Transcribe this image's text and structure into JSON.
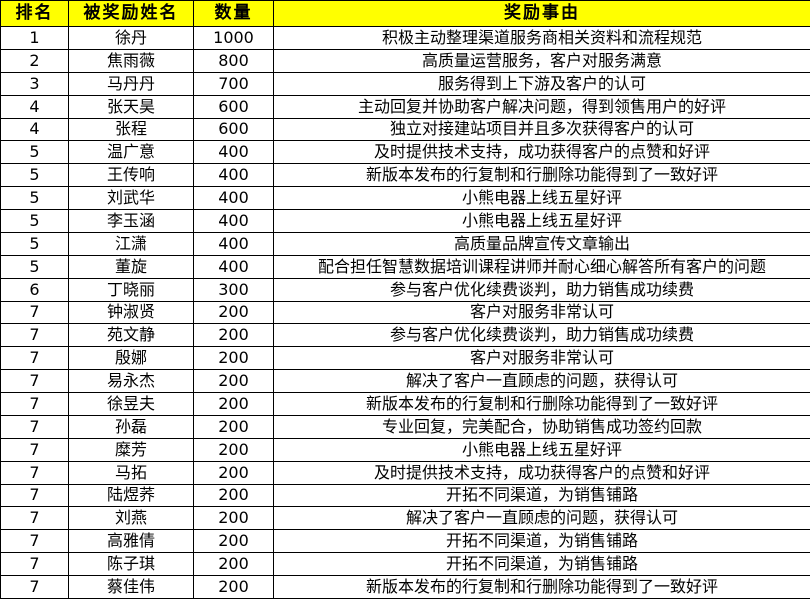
{
  "colors": {
    "header_bg": "#FFFF00",
    "border": "#000000",
    "text": "#000000",
    "background": "#FFFFFF"
  },
  "table": {
    "headers": [
      "排名",
      "被奖励姓名",
      "数量",
      "奖励事由"
    ],
    "rows": [
      {
        "rank": "1",
        "name": "徐丹",
        "qty": "1000",
        "reason": "积极主动整理渠道服务商相关资料和流程规范"
      },
      {
        "rank": "2",
        "name": "焦雨薇",
        "qty": "800",
        "reason": "高质量运营服务，客户对服务满意"
      },
      {
        "rank": "3",
        "name": "马丹丹",
        "qty": "700",
        "reason": "服务得到上下游及客户的认可"
      },
      {
        "rank": "4",
        "name": "张天昊",
        "qty": "600",
        "reason": "主动回复并协助客户解决问题，得到领售用户的好评"
      },
      {
        "rank": "4",
        "name": "张程",
        "qty": "600",
        "reason": "独立对接建站项目并且多次获得客户的认可"
      },
      {
        "rank": "5",
        "name": "温广意",
        "qty": "400",
        "reason": "及时提供技术支持，成功获得客户的点赞和好评"
      },
      {
        "rank": "5",
        "name": "王传响",
        "qty": "400",
        "reason": "新版本发布的行复制和行删除功能得到了一致好评"
      },
      {
        "rank": "5",
        "name": "刘武华",
        "qty": "400",
        "reason": "小熊电器上线五星好评"
      },
      {
        "rank": "5",
        "name": "李玉涵",
        "qty": "400",
        "reason": "小熊电器上线五星好评"
      },
      {
        "rank": "5",
        "name": "江潇",
        "qty": "400",
        "reason": "高质量品牌宣传文章输出"
      },
      {
        "rank": "5",
        "name": "董旋",
        "qty": "400",
        "reason": "配合担任智慧数据培训课程讲师并耐心细心解答所有客户的问题"
      },
      {
        "rank": "6",
        "name": "丁晓丽",
        "qty": "300",
        "reason": "参与客户优化续费谈判，助力销售成功续费"
      },
      {
        "rank": "7",
        "name": "钟淑贤",
        "qty": "200",
        "reason": "客户对服务非常认可"
      },
      {
        "rank": "7",
        "name": "苑文静",
        "qty": "200",
        "reason": "参与客户优化续费谈判，助力销售成功续费"
      },
      {
        "rank": "7",
        "name": "殷娜",
        "qty": "200",
        "reason": "客户对服务非常认可"
      },
      {
        "rank": "7",
        "name": "易永杰",
        "qty": "200",
        "reason": "解决了客户一直顾虑的问题，获得认可"
      },
      {
        "rank": "7",
        "name": "徐昱夫",
        "qty": "200",
        "reason": "新版本发布的行复制和行删除功能得到了一致好评"
      },
      {
        "rank": "7",
        "name": "孙磊",
        "qty": "200",
        "reason": "专业回复，完美配合，协助销售成功签约回款"
      },
      {
        "rank": "7",
        "name": "糜芳",
        "qty": "200",
        "reason": "小熊电器上线五星好评"
      },
      {
        "rank": "7",
        "name": "马拓",
        "qty": "200",
        "reason": "及时提供技术支持，成功获得客户的点赞和好评"
      },
      {
        "rank": "7",
        "name": "陆煜荞",
        "qty": "200",
        "reason": "开拓不同渠道，为销售铺路"
      },
      {
        "rank": "7",
        "name": "刘燕",
        "qty": "200",
        "reason": "解决了客户一直顾虑的问题，获得认可"
      },
      {
        "rank": "7",
        "name": "高雅倩",
        "qty": "200",
        "reason": "开拓不同渠道，为销售铺路"
      },
      {
        "rank": "7",
        "name": "陈子琪",
        "qty": "200",
        "reason": "开拓不同渠道，为销售铺路"
      },
      {
        "rank": "7",
        "name": "蔡佳伟",
        "qty": "200",
        "reason": "新版本发布的行复制和行删除功能得到了一致好评"
      }
    ]
  }
}
